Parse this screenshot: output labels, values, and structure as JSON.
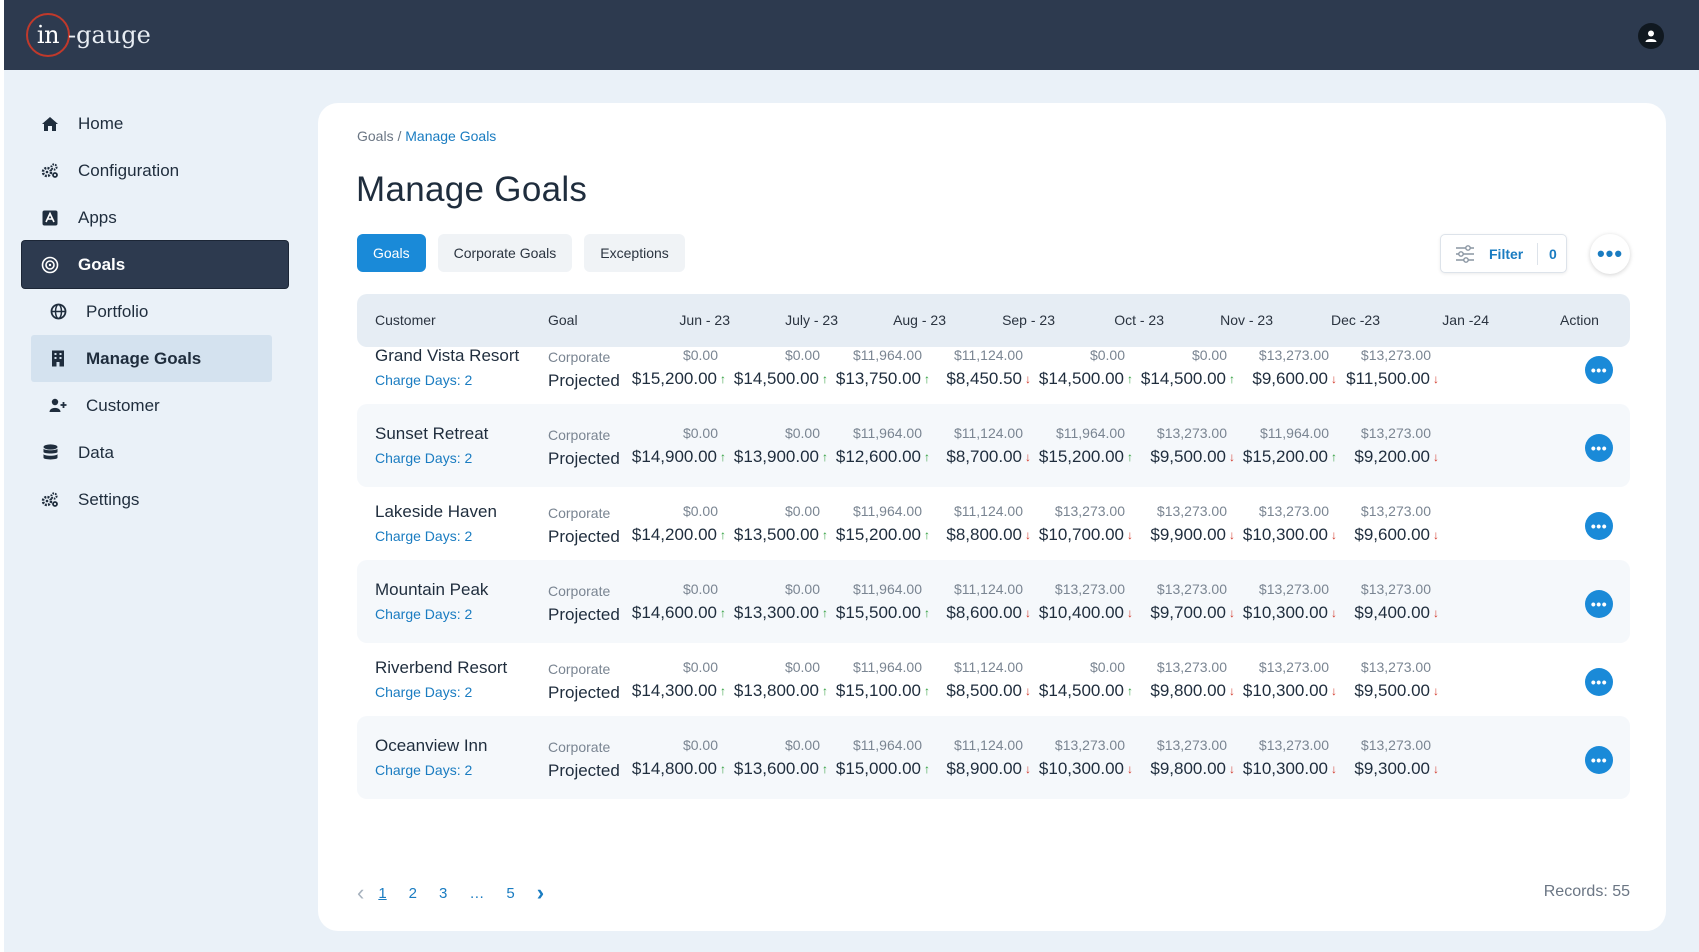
{
  "app": {
    "logo_circle": "in",
    "logo_text": "-gauge"
  },
  "sidebar": {
    "items": [
      {
        "label": "Home",
        "icon": "home-icon"
      },
      {
        "label": "Configuration",
        "icon": "gears-icon"
      },
      {
        "label": "Apps",
        "icon": "apps-icon"
      },
      {
        "label": "Goals",
        "icon": "target-icon"
      },
      {
        "label": "Portfolio",
        "icon": "globe-icon"
      },
      {
        "label": "Manage Goals",
        "icon": "building-icon"
      },
      {
        "label": "Customer",
        "icon": "user-plus-icon"
      },
      {
        "label": "Data",
        "icon": "database-icon"
      },
      {
        "label": "Settings",
        "icon": "gears-icon"
      }
    ]
  },
  "breadcrumb": {
    "root": "Goals",
    "sep": " / ",
    "current": "Manage Goals"
  },
  "page": {
    "title": "Manage Goals"
  },
  "tabs": [
    "Goals",
    "Corporate Goals",
    "Exceptions"
  ],
  "filter": {
    "label": "Filter",
    "count": "0"
  },
  "more_label": "•••",
  "table": {
    "headers": [
      "Customer",
      "Goal",
      "Jun - 23",
      "July - 23",
      "Aug - 23",
      "Sep - 23",
      "Oct - 23",
      "Nov -  23",
      "Dec -23",
      "Jan -24",
      "Action"
    ],
    "rows": [
      {
        "customer": "Grand Vista Resort",
        "days": "Charge Days: 2",
        "goal_top": "Corporate",
        "goal_bot": "Projected",
        "cells": [
          {
            "top": "$0.00",
            "bot": "$15,200.00",
            "dir": "↑"
          },
          {
            "top": "$0.00",
            "bot": "$14,500.00",
            "dir": "↑"
          },
          {
            "top": "$11,964.00",
            "bot": "$13,750.00",
            "dir": "↑"
          },
          {
            "top": "$11,124.00",
            "bot": "$8,450.50",
            "dir": "↓"
          },
          {
            "top": "$0.00",
            "bot": "$14,500.00",
            "dir": "↑"
          },
          {
            "top": "$0.00",
            "bot": "$14,500.00",
            "dir": "↑"
          },
          {
            "top": "$13,273.00",
            "bot": "$9,600.00",
            "dir": "↓"
          },
          {
            "top": "$13,273.00",
            "bot": "$11,500.00",
            "dir": "↓"
          }
        ]
      },
      {
        "customer": "Sunset Retreat",
        "days": "Charge Days: 2",
        "goal_top": "Corporate",
        "goal_bot": "Projected",
        "cells": [
          {
            "top": "$0.00",
            "bot": "$14,900.00",
            "dir": "↑"
          },
          {
            "top": "$0.00",
            "bot": "$13,900.00",
            "dir": "↑"
          },
          {
            "top": "$11,964.00",
            "bot": "$12,600.00",
            "dir": "↑"
          },
          {
            "top": "$11,124.00",
            "bot": "$8,700.00",
            "dir": "↓"
          },
          {
            "top": "$11,964.00",
            "bot": "$15,200.00",
            "dir": "↑"
          },
          {
            "top": "$13,273.00",
            "bot": "$9,500.00",
            "dir": "↓"
          },
          {
            "top": "$11,964.00",
            "bot": "$15,200.00",
            "dir": "↑"
          },
          {
            "top": "$13,273.00",
            "bot": "$9,200.00",
            "dir": "↓"
          }
        ]
      },
      {
        "customer": "Lakeside Haven",
        "days": "Charge Days: 2",
        "goal_top": "Corporate",
        "goal_bot": "Projected",
        "cells": [
          {
            "top": "$0.00",
            "bot": "$14,200.00",
            "dir": "↑"
          },
          {
            "top": "$0.00",
            "bot": "$13,500.00",
            "dir": "↑"
          },
          {
            "top": "$11,964.00",
            "bot": "$15,200.00",
            "dir": "↑"
          },
          {
            "top": "$11,124.00",
            "bot": "$8,800.00",
            "dir": "↓"
          },
          {
            "top": "$13,273.00",
            "bot": "$10,700.00",
            "dir": "↓"
          },
          {
            "top": "$13,273.00",
            "bot": "$9,900.00",
            "dir": "↓"
          },
          {
            "top": "$13,273.00",
            "bot": "$10,300.00",
            "dir": "↓"
          },
          {
            "top": "$13,273.00",
            "bot": "$9,600.00",
            "dir": "↓"
          }
        ]
      },
      {
        "customer": "Mountain Peak",
        "days": "Charge Days: 2",
        "goal_top": "Corporate",
        "goal_bot": "Projected",
        "cells": [
          {
            "top": "$0.00",
            "bot": "$14,600.00",
            "dir": "↑"
          },
          {
            "top": "$0.00",
            "bot": "$13,300.00",
            "dir": "↑"
          },
          {
            "top": "$11,964.00",
            "bot": "$15,500.00",
            "dir": "↑"
          },
          {
            "top": "$11,124.00",
            "bot": "$8,600.00",
            "dir": "↓"
          },
          {
            "top": "$13,273.00",
            "bot": "$10,400.00",
            "dir": "↓"
          },
          {
            "top": "$13,273.00",
            "bot": "$9,700.00",
            "dir": "↓"
          },
          {
            "top": "$13,273.00",
            "bot": "$10,300.00",
            "dir": "↓"
          },
          {
            "top": "$13,273.00",
            "bot": "$9,400.00",
            "dir": "↓"
          }
        ]
      },
      {
        "customer": "Riverbend Resort",
        "days": "Charge Days: 2",
        "goal_top": "Corporate",
        "goal_bot": "Projected",
        "cells": [
          {
            "top": "$0.00",
            "bot": "$14,300.00",
            "dir": "↑"
          },
          {
            "top": "$0.00",
            "bot": "$13,800.00",
            "dir": "↑"
          },
          {
            "top": "$11,964.00",
            "bot": "$15,100.00",
            "dir": "↑"
          },
          {
            "top": "$11,124.00",
            "bot": "$8,500.00",
            "dir": "↓"
          },
          {
            "top": "$0.00",
            "bot": "$14,500.00",
            "dir": "↑"
          },
          {
            "top": "$13,273.00",
            "bot": "$9,800.00",
            "dir": "↓"
          },
          {
            "top": "$13,273.00",
            "bot": "$10,300.00",
            "dir": "↓"
          },
          {
            "top": "$13,273.00",
            "bot": "$9,500.00",
            "dir": "↓"
          }
        ]
      },
      {
        "customer": "Oceanview Inn",
        "days": "Charge Days: 2",
        "goal_top": "Corporate",
        "goal_bot": "Projected",
        "cells": [
          {
            "top": "$0.00",
            "bot": "$14,800.00",
            "dir": "↑"
          },
          {
            "top": "$0.00",
            "bot": "$13,600.00",
            "dir": "↑"
          },
          {
            "top": "$11,964.00",
            "bot": "$15,000.00",
            "dir": "↑"
          },
          {
            "top": "$11,124.00",
            "bot": "$8,900.00",
            "dir": "↓"
          },
          {
            "top": "$13,273.00",
            "bot": "$10,300.00",
            "dir": "↓"
          },
          {
            "top": "$13,273.00",
            "bot": "$9,800.00",
            "dir": "↓"
          },
          {
            "top": "$13,273.00",
            "bot": "$10,300.00",
            "dir": "↓"
          },
          {
            "top": "$13,273.00",
            "bot": "$9,300.00",
            "dir": "↓"
          }
        ]
      }
    ]
  },
  "action_label": "•••",
  "pagination": {
    "prev": "‹",
    "pages": [
      "1",
      "2",
      "3",
      "…",
      "5"
    ],
    "next": "›"
  },
  "records": "Records: 55",
  "colors": {
    "topbar": "#2d3a4f",
    "accent": "#1a8ad8",
    "up": "#2e9e3c",
    "down": "#d33a2c"
  }
}
